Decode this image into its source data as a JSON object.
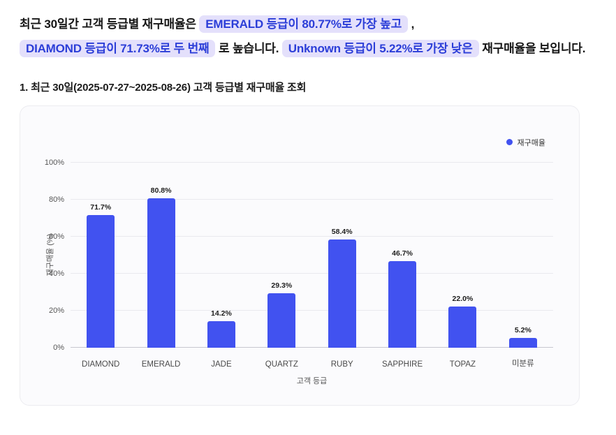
{
  "summary": {
    "seg1": "최근 30일간 고객 등급별 재구매율은",
    "hl1": "EMERALD 등급이 80.77%로 가장 높고",
    "seg2": ",",
    "hl2": "DIAMOND 등급이 71.73%로 두 번째",
    "seg3": "로 높습니다.",
    "hl3": "Unknown 등급이 5.22%로 가장 낮은",
    "seg4": "재구매율을 보입니다."
  },
  "section_title": "1. 최근 30일(2025-07-27~2025-08-26) 고객 등급별 재구매율 조회",
  "colors": {
    "bar": "#4152f0",
    "highlight_bg": "#e4e0fb",
    "highlight_text": "#2c3ed8"
  },
  "chart_data": {
    "type": "bar",
    "title": "",
    "categories": [
      "DIAMOND",
      "EMERALD",
      "JADE",
      "QUARTZ",
      "RUBY",
      "SAPPHIRE",
      "TOPAZ",
      "미분류"
    ],
    "values": [
      71.7,
      80.8,
      14.2,
      29.3,
      58.4,
      46.7,
      22.0,
      5.2
    ],
    "value_labels": [
      "71.7%",
      "80.8%",
      "14.2%",
      "29.3%",
      "58.4%",
      "46.7%",
      "22.0%",
      "5.2%"
    ],
    "xlabel": "고객 등급",
    "ylabel": "재구매율 (%)",
    "ylim": [
      0,
      100
    ],
    "ytick_values": [
      0,
      20,
      40,
      60,
      80,
      100
    ],
    "ytick_labels": [
      "0%",
      "20%",
      "40%",
      "60%",
      "80%",
      "100%"
    ],
    "legend_label": "재구매율",
    "legend_position": "top-right",
    "grid": true,
    "bar_color": "#4152f0"
  }
}
